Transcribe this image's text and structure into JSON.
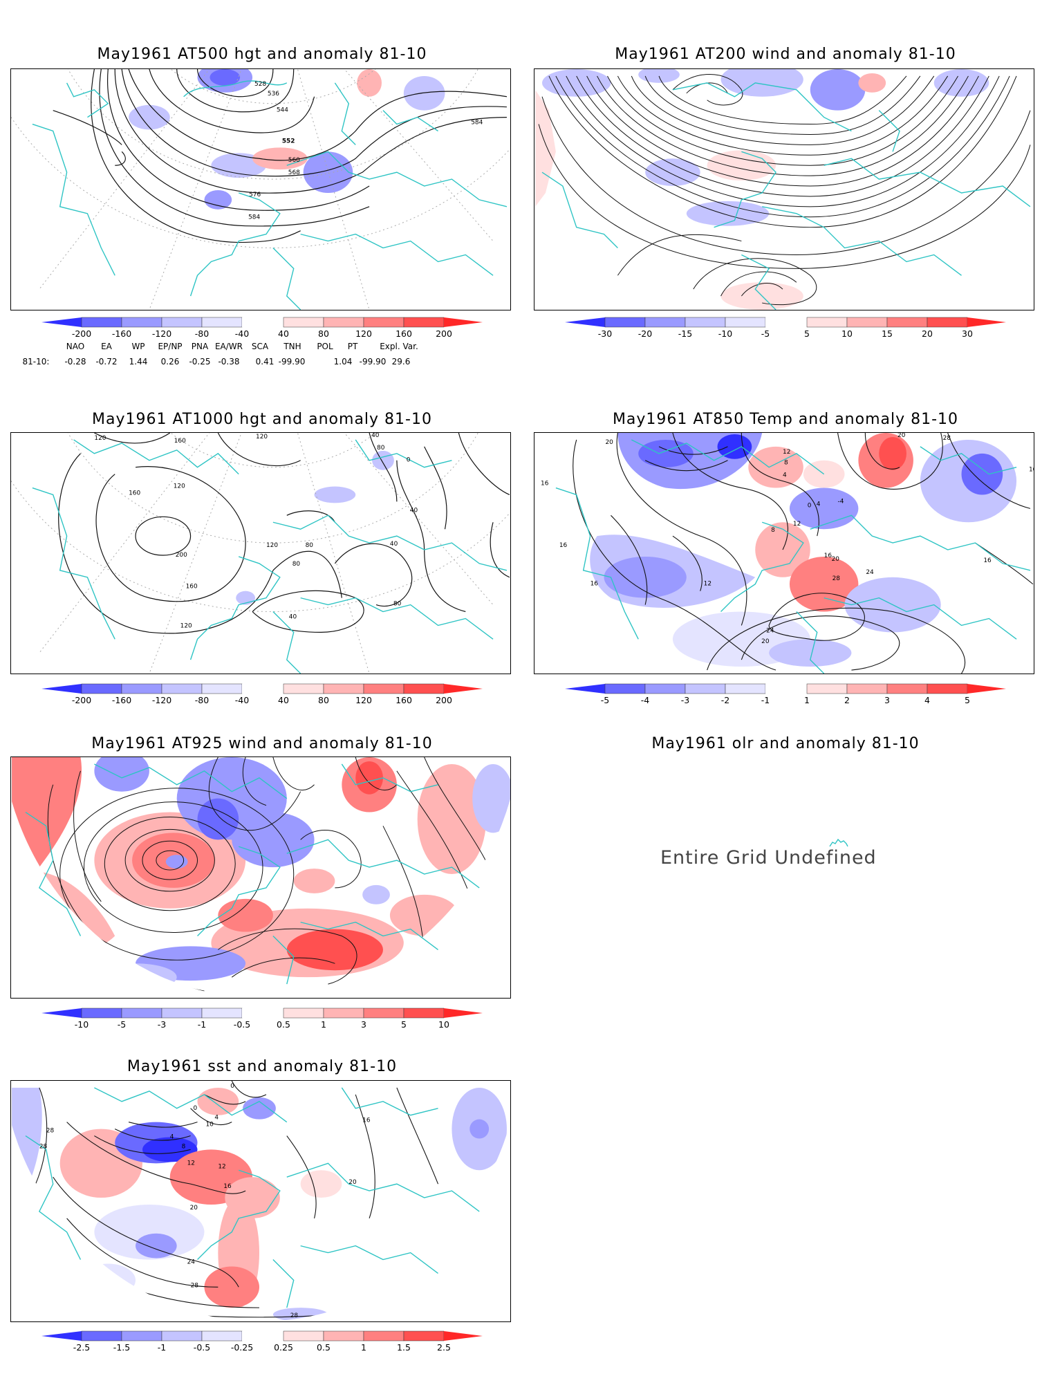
{
  "panels": [
    {
      "title": "May1961 AT500 hgt and anomaly 81-10",
      "contour_labels": [
        "528",
        "536",
        "544",
        "552",
        "560",
        "568",
        "576",
        "584",
        "584"
      ],
      "colorbar": [
        "-200",
        "-160",
        "-120",
        "-80",
        "-40",
        "40",
        "80",
        "120",
        "160",
        "200"
      ]
    },
    {
      "title": "May1961 AT200 wind and anomaly 81-10",
      "colorbar": [
        "-30",
        "-20",
        "-15",
        "-10",
        "-5",
        "5",
        "10",
        "15",
        "20",
        "30"
      ]
    },
    {
      "title": "May1961 AT1000 hgt and anomaly 81-10",
      "contour_labels": [
        "120",
        "160",
        "120",
        "120",
        "160",
        "200",
        "160",
        "120",
        "80",
        "40",
        "40",
        "0",
        "80",
        "40",
        "120",
        "80",
        "40",
        "80"
      ],
      "colorbar": [
        "-200",
        "-160",
        "-120",
        "-80",
        "-40",
        "40",
        "80",
        "120",
        "160",
        "200"
      ]
    },
    {
      "title": "May1961 AT850 Temp and anomaly 81-10",
      "contour_labels": [
        "20",
        "16",
        "16",
        "16",
        "12",
        "12",
        "8",
        "4",
        "0",
        "-4",
        "4",
        "8",
        "12",
        "16",
        "20",
        "24",
        "28",
        "24",
        "20",
        "20",
        "28",
        "16",
        "16"
      ],
      "colorbar": [
        "-5",
        "-4",
        "-3",
        "-2",
        "-1",
        "1",
        "2",
        "3",
        "4",
        "5"
      ]
    },
    {
      "title": "May1961 AT925 wind and anomaly 81-10",
      "colorbar": [
        "-10",
        "-5",
        "-3",
        "-1",
        "-0.5",
        "0.5",
        "1",
        "3",
        "5",
        "10"
      ]
    },
    {
      "title": "May1961 olr and anomaly 81-10",
      "message": "Entire Grid Undefined"
    },
    {
      "title": "May1961 sst and anomaly 81-10",
      "contour_labels": [
        "0",
        "0",
        "4",
        "10",
        "4",
        "8",
        "12",
        "12",
        "16",
        "20",
        "24",
        "28",
        "28",
        "28",
        "28",
        "20",
        "16"
      ],
      "colorbar": [
        "-2.5",
        "-1.5",
        "-1",
        "-0.5",
        "-0.25",
        "0.25",
        "0.5",
        "1",
        "1.5",
        "2.5"
      ]
    }
  ],
  "teleconnections": {
    "row_label": "81-10:",
    "names": [
      "NAO",
      "EA",
      "WP",
      "EP/NP",
      "PNA",
      "EA/WR",
      "SCA",
      "TNH",
      "POL",
      "PT",
      "Expl. Var."
    ],
    "values": [
      "-0.28",
      "-0.72",
      "1.44",
      "0.26",
      "-0.25",
      "-0.38",
      "0.41",
      "-99.90",
      "1.04",
      "-99.90",
      "29.6"
    ]
  },
  "colors": {
    "coast": "#2ec4c4",
    "blue_scale": [
      "#3030ff",
      "#6a6aff",
      "#9a9aff",
      "#c4c4ff",
      "#e4e4ff"
    ],
    "red_scale": [
      "#ffe0e0",
      "#ffb4b4",
      "#ff8080",
      "#ff5050",
      "#ff2828"
    ]
  }
}
